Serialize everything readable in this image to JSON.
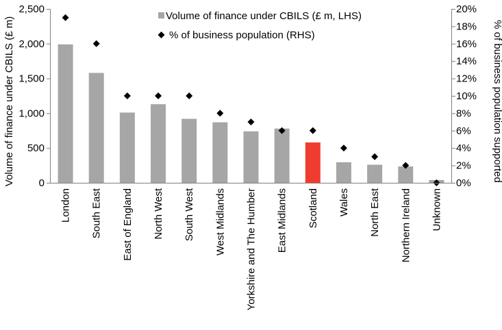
{
  "chart_data": {
    "type": "bar",
    "categories": [
      "London",
      "South East",
      "East of England",
      "North West",
      "South West",
      "West Midlands",
      "Yorkshire and The Humber",
      "East Midlands",
      "Scotland",
      "Wales",
      "North East",
      "Northern Ireland",
      "Unknown"
    ],
    "series": [
      {
        "name": "Volume of finance under CBILS (£ m, LHS)",
        "type": "bar",
        "axis": "left",
        "values": [
          1990,
          1580,
          1010,
          1130,
          920,
          870,
          740,
          780,
          580,
          295,
          260,
          235,
          40
        ]
      },
      {
        "name": "% of business population (RHS)",
        "type": "scatter",
        "axis": "right",
        "values": [
          19,
          16,
          10,
          10,
          10,
          8,
          7,
          6,
          6,
          4,
          3,
          2,
          0
        ]
      }
    ],
    "highlight_category": "Scotland",
    "ylabel": "Volume of finance under CBILS (£ m)",
    "y2label": "% of business population supported",
    "ylim": [
      0,
      2500
    ],
    "y2lim": [
      0,
      20
    ],
    "yticks": [
      "0",
      "500",
      "1,000",
      "1,500",
      "2,000",
      "2,500"
    ],
    "y2ticks": [
      "0%",
      "2%",
      "4%",
      "6%",
      "8%",
      "10%",
      "12%",
      "14%",
      "16%",
      "18%",
      "20%"
    ],
    "grid": false,
    "legend_position": "top-right",
    "colors": {
      "bar": "#a6a6a6",
      "highlight_bar": "#f03c2e",
      "marker": "#000000",
      "axis": "#7f7f7f"
    }
  }
}
